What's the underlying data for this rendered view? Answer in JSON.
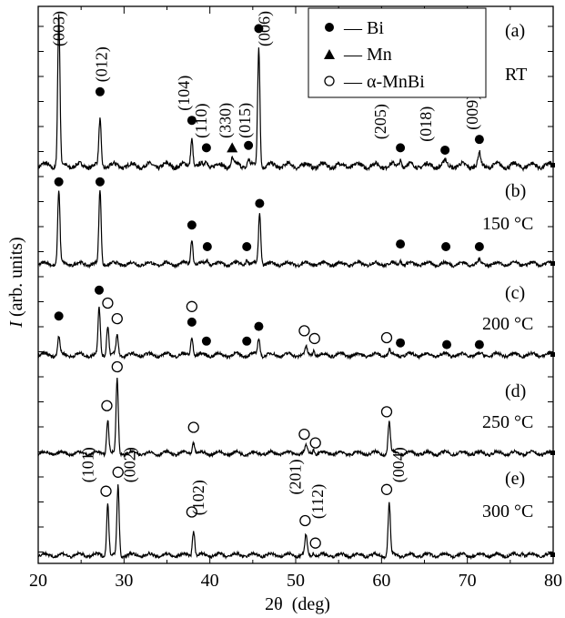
{
  "chart_data": {
    "type": "line",
    "xlabel": "2θ  (deg)",
    "ylabel_italic": "I",
    "ylabel_rest": " (arb. units)",
    "xlim": [
      20,
      80
    ],
    "xticks": [
      "20",
      "30",
      "40",
      "50",
      "60",
      "70",
      "80"
    ],
    "legend": [
      {
        "marker": "circle-filled",
        "label": "— Bi"
      },
      {
        "marker": "triangle",
        "label": "— Mn"
      },
      {
        "marker": "circle-open",
        "label": "— α-MnBi"
      }
    ],
    "panels": [
      {
        "id": "a",
        "panel_label": "(a)",
        "temperature": "RT",
        "peaks": [
          {
            "x": 22.4,
            "h": 1.25
          },
          {
            "x": 27.2,
            "h": 0.38
          },
          {
            "x": 37.9,
            "h": 0.24
          },
          {
            "x": 39.6,
            "h": 0.05
          },
          {
            "x": 42.6,
            "h": 0.06
          },
          {
            "x": 44.5,
            "h": 0.06
          },
          {
            "x": 45.7,
            "h": 1.0
          },
          {
            "x": 62.2,
            "h": 0.06
          },
          {
            "x": 67.4,
            "h": 0.04
          },
          {
            "x": 71.4,
            "h": 0.1
          }
        ],
        "markers": [
          {
            "x": 27.2,
            "type": "circle-filled",
            "at": 0.62
          },
          {
            "x": 37.9,
            "type": "circle-filled",
            "at": 0.38
          },
          {
            "x": 39.6,
            "type": "circle-filled",
            "at": 0.15
          },
          {
            "x": 42.6,
            "type": "triangle",
            "at": 0.15
          },
          {
            "x": 44.5,
            "type": "circle-filled",
            "at": 0.17
          },
          {
            "x": 45.7,
            "type": "circle-filled",
            "at": 1.15
          },
          {
            "x": 62.2,
            "type": "circle-filled",
            "at": 0.15
          },
          {
            "x": 67.4,
            "type": "circle-filled",
            "at": 0.13
          },
          {
            "x": 71.4,
            "type": "circle-filled",
            "at": 0.22
          }
        ],
        "hkl": [
          {
            "x": 23.0,
            "text": "(003)",
            "at": 1.0
          },
          {
            "x": 28.0,
            "text": "(012)",
            "at": 0.7
          },
          {
            "x": 37.6,
            "text": "(104)",
            "at": 0.46
          },
          {
            "x": 39.6,
            "text": "(110)",
            "at": 0.23
          },
          {
            "x": 42.4,
            "text": "(330)",
            "at": 0.23
          },
          {
            "x": 44.7,
            "text": "(015)",
            "at": 0.23
          },
          {
            "x": 47.0,
            "text": "(006)",
            "at": 1.0
          },
          {
            "x": 60.5,
            "text": "(205)",
            "at": 0.22
          },
          {
            "x": 65.8,
            "text": "(018)",
            "at": 0.2
          },
          {
            "x": 71.2,
            "text": "(009)",
            "at": 0.3
          }
        ]
      },
      {
        "id": "b",
        "panel_label": "(b)",
        "temperature": "150 °C",
        "peaks": [
          {
            "x": 22.4,
            "h": 0.85
          },
          {
            "x": 27.2,
            "h": 0.85
          },
          {
            "x": 37.9,
            "h": 0.3
          },
          {
            "x": 39.7,
            "h": 0.05
          },
          {
            "x": 44.3,
            "h": 0.06
          },
          {
            "x": 45.8,
            "h": 0.6
          },
          {
            "x": 62.2,
            "h": 0.05
          },
          {
            "x": 71.4,
            "h": 0.04
          }
        ],
        "markers": [
          {
            "x": 22.4,
            "type": "circle-filled",
            "at": 0.95
          },
          {
            "x": 27.2,
            "type": "circle-filled",
            "at": 0.95
          },
          {
            "x": 37.9,
            "type": "circle-filled",
            "at": 0.45
          },
          {
            "x": 39.7,
            "type": "circle-filled",
            "at": 0.2
          },
          {
            "x": 44.3,
            "type": "circle-filled",
            "at": 0.2
          },
          {
            "x": 45.8,
            "type": "circle-filled",
            "at": 0.7
          },
          {
            "x": 62.2,
            "type": "circle-filled",
            "at": 0.23
          },
          {
            "x": 67.5,
            "type": "circle-filled",
            "at": 0.2
          },
          {
            "x": 71.4,
            "type": "circle-filled",
            "at": 0.2
          }
        ],
        "hkl": []
      },
      {
        "id": "c",
        "panel_label": "(c)",
        "temperature": "200 °C",
        "peaks": [
          {
            "x": 22.4,
            "h": 0.22
          },
          {
            "x": 27.1,
            "h": 0.55
          },
          {
            "x": 28.1,
            "h": 0.35
          },
          {
            "x": 29.2,
            "h": 0.22
          },
          {
            "x": 37.9,
            "h": 0.22
          },
          {
            "x": 45.7,
            "h": 0.2
          },
          {
            "x": 51.2,
            "h": 0.08
          },
          {
            "x": 52.1,
            "h": 0.06
          },
          {
            "x": 60.9,
            "h": 0.06
          }
        ],
        "markers": [
          {
            "x": 22.4,
            "type": "circle-filled",
            "at": 0.45
          },
          {
            "x": 27.1,
            "type": "circle-filled",
            "at": 0.75
          },
          {
            "x": 28.1,
            "type": "circle-open",
            "at": 0.6
          },
          {
            "x": 29.2,
            "type": "circle-open",
            "at": 0.42
          },
          {
            "x": 37.9,
            "type": "circle-filled",
            "at": 0.38
          },
          {
            "x": 37.9,
            "type": "circle-open",
            "at": 0.56
          },
          {
            "x": 39.6,
            "type": "circle-filled",
            "at": 0.16
          },
          {
            "x": 44.3,
            "type": "circle-filled",
            "at": 0.16
          },
          {
            "x": 45.7,
            "type": "circle-filled",
            "at": 0.33
          },
          {
            "x": 51.0,
            "type": "circle-open",
            "at": 0.28
          },
          {
            "x": 52.2,
            "type": "circle-open",
            "at": 0.19
          },
          {
            "x": 60.6,
            "type": "circle-open",
            "at": 0.2
          },
          {
            "x": 62.2,
            "type": "circle-filled",
            "at": 0.14
          },
          {
            "x": 67.6,
            "type": "circle-filled",
            "at": 0.12
          },
          {
            "x": 71.4,
            "type": "circle-filled",
            "at": 0.12
          }
        ],
        "hkl": []
      },
      {
        "id": "d",
        "panel_label": "(d)",
        "temperature": "250 °C",
        "peaks": [
          {
            "x": 28.1,
            "h": 0.4
          },
          {
            "x": 29.2,
            "h": 0.85
          },
          {
            "x": 38.1,
            "h": 0.14
          },
          {
            "x": 51.2,
            "h": 0.08
          },
          {
            "x": 52.1,
            "h": 0.05
          },
          {
            "x": 60.9,
            "h": 0.36
          }
        ],
        "markers": [
          {
            "x": 28.0,
            "type": "circle-open",
            "at": 0.55
          },
          {
            "x": 29.2,
            "type": "circle-open",
            "at": 1.0
          },
          {
            "x": 38.1,
            "type": "circle-open",
            "at": 0.3
          },
          {
            "x": 51.0,
            "type": "circle-open",
            "at": 0.22
          },
          {
            "x": 52.3,
            "type": "circle-open",
            "at": 0.12
          },
          {
            "x": 60.6,
            "type": "circle-open",
            "at": 0.48
          }
        ],
        "hkl": []
      },
      {
        "id": "e",
        "panel_label": "(e)",
        "temperature": "300 °C",
        "peaks": [
          {
            "x": 28.1,
            "h": 0.6
          },
          {
            "x": 29.3,
            "h": 0.8
          },
          {
            "x": 38.1,
            "h": 0.3
          },
          {
            "x": 51.2,
            "h": 0.22
          },
          {
            "x": 52.1,
            "h": 0.04
          },
          {
            "x": 60.9,
            "h": 0.6
          },
          {
            "x": 76.4,
            "h": 0.04
          }
        ],
        "markers": [
          {
            "x": 27.9,
            "type": "circle-open",
            "at": 0.74
          },
          {
            "x": 29.3,
            "type": "circle-open",
            "at": 0.96
          },
          {
            "x": 37.9,
            "type": "circle-open",
            "at": 0.5
          },
          {
            "x": 51.1,
            "type": "circle-open",
            "at": 0.4
          },
          {
            "x": 52.3,
            "type": "circle-open",
            "at": 0.14
          },
          {
            "x": 60.6,
            "type": "circle-open",
            "at": 0.76
          }
        ],
        "hkl": [
          {
            "x": 26.4,
            "text": "(101)",
            "at": 0.84
          },
          {
            "x": 31.3,
            "text": "(002)",
            "at": 0.84
          },
          {
            "x": 39.3,
            "text": "(102)",
            "at": 0.46
          },
          {
            "x": 50.6,
            "text": "(201)",
            "at": 0.7
          },
          {
            "x": 53.2,
            "text": "(112)",
            "at": 0.42
          },
          {
            "x": 62.6,
            "text": "(004)",
            "at": 0.84
          }
        ]
      }
    ]
  }
}
